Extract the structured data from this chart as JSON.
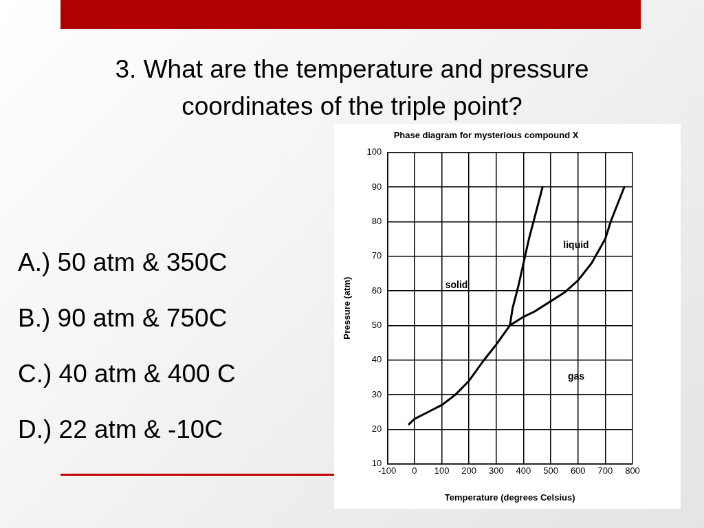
{
  "chart_data": {
    "type": "line",
    "title": "Phase diagram for mysterious compound X",
    "xlabel": "Temperature (degrees Celsius)",
    "ylabel": "Pressure (atm)",
    "series": [
      {
        "color": "#000000",
        "x": [
          -20,
          0,
          50,
          100,
          150,
          200,
          250,
          300,
          350,
          360,
          380,
          400,
          420,
          440,
          470
        ],
        "values": [
          21.5,
          23,
          25,
          27,
          30,
          34,
          39.5,
          44.5,
          50,
          55,
          61,
          68,
          75,
          81,
          90
        ]
      },
      {
        "color": "#000000",
        "x": [
          350,
          400,
          440,
          500,
          550,
          600,
          650,
          700,
          720,
          770
        ],
        "values": [
          50,
          52.5,
          54,
          57,
          59.5,
          63,
          68,
          75,
          80,
          90
        ]
      }
    ],
    "xlim": [
      -100,
      800
    ],
    "xticks": [
      -100,
      0,
      100,
      200,
      300,
      400,
      500,
      600,
      700,
      800
    ],
    "ylim": [
      10,
      100
    ],
    "yticks": [
      10,
      20,
      30,
      40,
      50,
      60,
      70,
      80,
      90,
      100
    ],
    "grid": true,
    "legend": false,
    "marker": "none",
    "line_style": "solid",
    "annotations": [
      "3.  What are the temperature and pressure coordinates of the triple point?",
      "A.) 50 atm & 350C",
      "B.) 90 atm & 750C",
      "C.) 40 atm & 400 C",
      "D.) 22 atm & -10C",
      "solid",
      "liquid",
      "gas"
    ]
  }
}
